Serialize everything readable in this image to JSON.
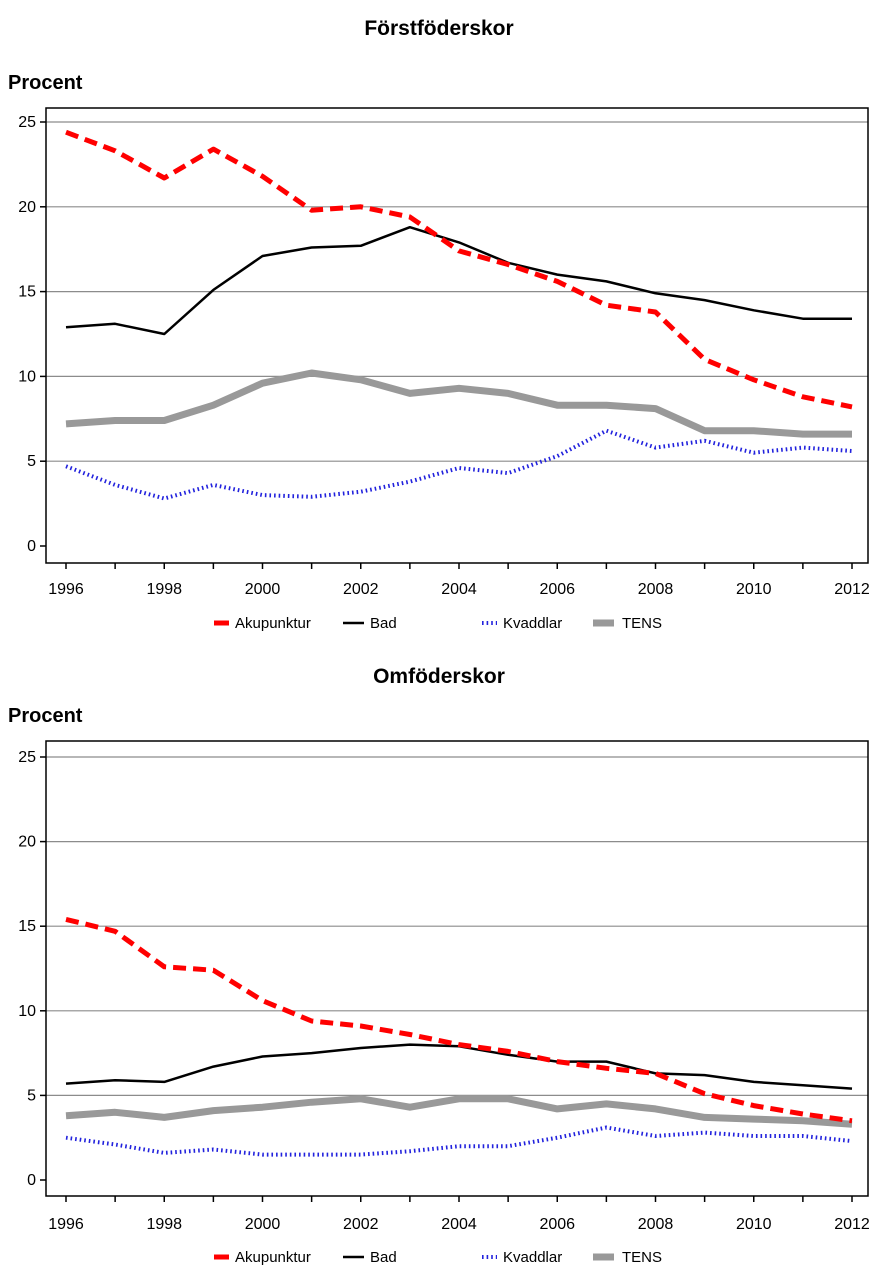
{
  "chart_data": [
    {
      "type": "line",
      "title": "Förstföderskor",
      "ylabel": "Procent",
      "xlabel": "",
      "x": [
        1996,
        1997,
        1998,
        1999,
        2000,
        2001,
        2002,
        2003,
        2004,
        2005,
        2006,
        2007,
        2008,
        2009,
        2010,
        2011,
        2012
      ],
      "xticks": [
        "1996",
        "1998",
        "2000",
        "2002",
        "2004",
        "2006",
        "2008",
        "2010",
        "2012"
      ],
      "yticks": [
        "0",
        "5",
        "10",
        "15",
        "20",
        "25"
      ],
      "ylim": [
        0,
        25
      ],
      "grid": true,
      "legend_position": "bottom",
      "series": [
        {
          "name": "Akupunktur",
          "color": "#ff0000",
          "style": "dashed",
          "values": [
            24.4,
            23.3,
            21.7,
            23.4,
            21.8,
            19.8,
            20.0,
            19.4,
            17.4,
            16.6,
            15.6,
            14.2,
            13.8,
            11.0,
            9.8,
            8.8,
            8.2
          ]
        },
        {
          "name": "Bad",
          "color": "#000000",
          "style": "solid",
          "values": [
            12.9,
            13.1,
            12.5,
            15.1,
            17.1,
            17.6,
            17.7,
            18.8,
            17.9,
            16.7,
            16.0,
            15.6,
            14.9,
            14.5,
            13.9,
            13.4,
            13.4
          ]
        },
        {
          "name": "Kvaddlar",
          "color": "#2222dd",
          "style": "dotted",
          "values": [
            4.7,
            3.6,
            2.8,
            3.6,
            3.0,
            2.9,
            3.2,
            3.8,
            4.6,
            4.3,
            5.3,
            6.8,
            5.8,
            6.2,
            5.5,
            5.8,
            5.6
          ]
        },
        {
          "name": "TENS",
          "color": "#999999",
          "style": "thick",
          "values": [
            7.2,
            7.4,
            7.4,
            8.3,
            9.6,
            10.2,
            9.8,
            9.0,
            9.3,
            9.0,
            8.3,
            8.3,
            8.1,
            6.8,
            6.8,
            6.6,
            6.6
          ]
        }
      ]
    },
    {
      "type": "line",
      "title": "Omföderskor",
      "ylabel": "Procent",
      "xlabel": "",
      "x": [
        1996,
        1997,
        1998,
        1999,
        2000,
        2001,
        2002,
        2003,
        2004,
        2005,
        2006,
        2007,
        2008,
        2009,
        2010,
        2011,
        2012
      ],
      "xticks": [
        "1996",
        "1998",
        "2000",
        "2002",
        "2004",
        "2006",
        "2008",
        "2010",
        "2012"
      ],
      "yticks": [
        "0",
        "5",
        "10",
        "15",
        "20",
        "25"
      ],
      "ylim": [
        0,
        25
      ],
      "grid": true,
      "legend_position": "bottom",
      "series": [
        {
          "name": "Akupunktur",
          "color": "#ff0000",
          "style": "dashed",
          "values": [
            15.4,
            14.7,
            12.6,
            12.4,
            10.6,
            9.4,
            9.1,
            8.6,
            8.0,
            7.6,
            7.0,
            6.6,
            6.3,
            5.1,
            4.4,
            3.9,
            3.5
          ]
        },
        {
          "name": "Bad",
          "color": "#000000",
          "style": "solid",
          "values": [
            5.7,
            5.9,
            5.8,
            6.7,
            7.3,
            7.5,
            7.8,
            8.0,
            7.9,
            7.4,
            7.0,
            7.0,
            6.3,
            6.2,
            5.8,
            5.6,
            5.4
          ]
        },
        {
          "name": "Kvaddlar",
          "color": "#2222dd",
          "style": "dotted",
          "values": [
            2.5,
            2.1,
            1.6,
            1.8,
            1.5,
            1.5,
            1.5,
            1.7,
            2.0,
            2.0,
            2.5,
            3.1,
            2.6,
            2.8,
            2.6,
            2.6,
            2.3
          ]
        },
        {
          "name": "TENS",
          "color": "#999999",
          "style": "thick",
          "values": [
            3.8,
            4.0,
            3.7,
            4.1,
            4.3,
            4.6,
            4.8,
            4.3,
            4.8,
            4.8,
            4.2,
            4.5,
            4.2,
            3.7,
            3.6,
            3.5,
            3.3
          ]
        }
      ]
    }
  ]
}
